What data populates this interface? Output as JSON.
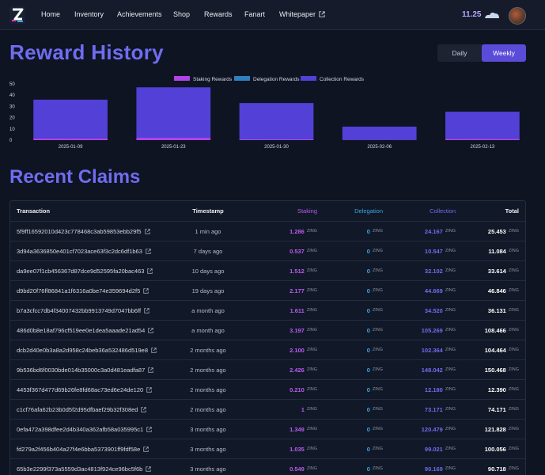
{
  "nav": {
    "links": [
      "Home",
      "Inventory",
      "Achievements",
      "Shop",
      "Rewards",
      "Fanart",
      "Whitepaper"
    ],
    "balance": "11.25"
  },
  "reward_history": {
    "title": "Reward History",
    "toggle": [
      "Daily",
      "Weekly"
    ],
    "active_toggle": "Weekly"
  },
  "chart_data": {
    "type": "bar",
    "stacked": true,
    "categories": [
      "2025-01-09",
      "2025-01-23",
      "2025-01-30",
      "2025-02-06",
      "2025-02-13"
    ],
    "series": [
      {
        "name": "Staking Rewards",
        "color": "#b144e8",
        "values": [
          1.5,
          2.1,
          0.7,
          0.2,
          1.1
        ]
      },
      {
        "name": "Delegation Rewards",
        "color": "#2f7fc1",
        "values": [
          0,
          0,
          0,
          0,
          0
        ]
      },
      {
        "name": "Collection Rewards",
        "color": "#5340d6",
        "values": [
          34.5,
          44.9,
          32.3,
          11.8,
          24.2
        ]
      }
    ],
    "yticks": [
      0,
      10,
      20,
      30,
      40,
      50
    ],
    "ylim": [
      0,
      50
    ],
    "legend": "top-center",
    "grid": false
  },
  "claims": {
    "title": "Recent Claims",
    "headers": [
      "Transaction",
      "Timestamp",
      "Staking",
      "Delegation",
      "Collection",
      "Total"
    ],
    "unit": "ZING",
    "rows": [
      {
        "tx": "5f9ff16592010d423c778468c3ab59853ebb29f5",
        "time": "1 min ago",
        "staking": "1.286",
        "delegation": "0",
        "collection": "24.167",
        "total": "25.453"
      },
      {
        "tx": "3d94a3636850e401cf7023ace63f3c2dc6df1b63",
        "time": "7 days ago",
        "staking": "0.537",
        "delegation": "0",
        "collection": "10.547",
        "total": "11.084"
      },
      {
        "tx": "da9ee07f1cb456367d87dce9d52595fa20bac463",
        "time": "10 days ago",
        "staking": "1.512",
        "delegation": "0",
        "collection": "32.102",
        "total": "33.614"
      },
      {
        "tx": "d9bd20f76ff86841a1f6316a0be74e359694d2f5",
        "time": "19 days ago",
        "staking": "2.177",
        "delegation": "0",
        "collection": "44.669",
        "total": "46.846"
      },
      {
        "tx": "b7a3cfcc7db4f34007432bb9913749d7047bb6ff",
        "time": "a month ago",
        "staking": "1.611",
        "delegation": "0",
        "collection": "34.520",
        "total": "36.131"
      },
      {
        "tx": "486d0b8e18af796cf519ee0e1dea5aaade21ad54",
        "time": "a month ago",
        "staking": "3.197",
        "delegation": "0",
        "collection": "105.269",
        "total": "108.466"
      },
      {
        "tx": "dcb2d40e0b3a8a2d958c24beb36a532486d519e8",
        "time": "2 months ago",
        "staking": "2.100",
        "delegation": "0",
        "collection": "102.364",
        "total": "104.464"
      },
      {
        "tx": "9b536bd6f0030bde014b35000c3a0d481eadfa87",
        "time": "2 months ago",
        "staking": "2.426",
        "delegation": "0",
        "collection": "148.042",
        "total": "150.468"
      },
      {
        "tx": "4453f367d477d69b26fe8fd68ac73ed6e24de120",
        "time": "2 months ago",
        "staking": "0.210",
        "delegation": "0",
        "collection": "12.180",
        "total": "12.390"
      },
      {
        "tx": "c1cf76afa62b23b0d5f2d95dfbaef29b32f308ed",
        "time": "2 months ago",
        "staking": "1",
        "delegation": "0",
        "collection": "73.171",
        "total": "74.171"
      },
      {
        "tx": "0efa472a398dfee2d4b340a362afb58a035995c1",
        "time": "3 months ago",
        "staking": "1.349",
        "delegation": "0",
        "collection": "120.479",
        "total": "121.828"
      },
      {
        "tx": "fd279a2f456b404a27f4e6bba5373901ff9fdf58e",
        "time": "3 months ago",
        "staking": "1.035",
        "delegation": "0",
        "collection": "99.021",
        "total": "100.056"
      },
      {
        "tx": "65b3e2299f373a5559d3ac4813f924ce96bc5f6b",
        "time": "3 months ago",
        "staking": "0.549",
        "delegation": "0",
        "collection": "90.169",
        "total": "90.718"
      }
    ]
  }
}
